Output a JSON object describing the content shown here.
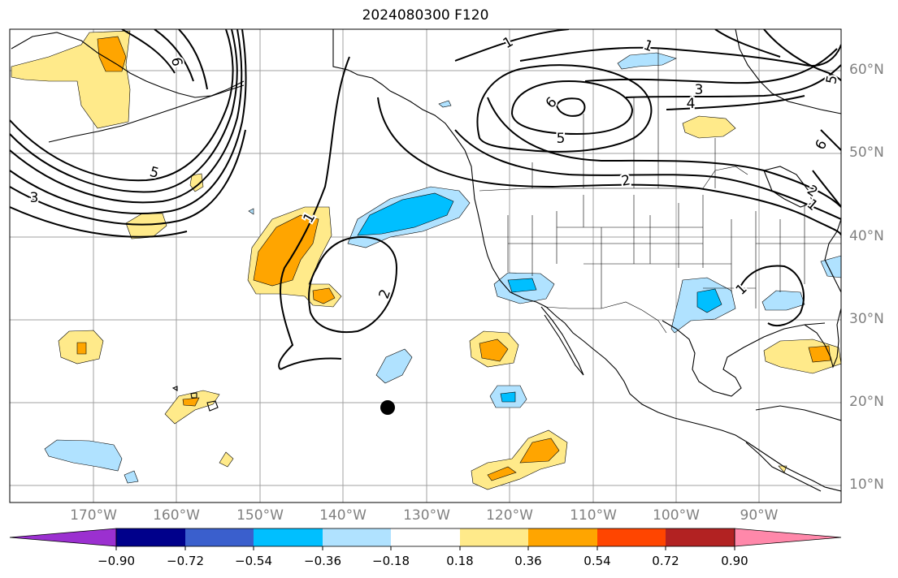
{
  "title": "2024080300 F120",
  "colors": {
    "land_outline": "#000000",
    "grid": "#a0a0a0",
    "contour": "#000000",
    "marker": "#000000"
  },
  "map": {
    "lat_labels": [
      "60°N",
      "50°N",
      "40°N",
      "30°N",
      "20°N",
      "10°N"
    ],
    "lon_labels": [
      "170°W",
      "160°W",
      "150°W",
      "140°W",
      "130°W",
      "120°W",
      "110°W",
      "100°W",
      "90°W"
    ],
    "contour_labels": [
      "1",
      "1",
      "1",
      "1",
      "1",
      "2",
      "2",
      "2",
      "3",
      "3",
      "4",
      "5",
      "5",
      "5",
      "6",
      "6",
      "6"
    ]
  },
  "colorbar": {
    "colors": [
      "#9b30d0",
      "#00008b",
      "#3a5fcd",
      "#00bfff",
      "#b0e2ff",
      "#ffffff",
      "#ffea8a",
      "#ffa500",
      "#ff4500",
      "#b22222",
      "#ff88aa"
    ],
    "ticks": [
      "−0.90",
      "−0.72",
      "−0.54",
      "−0.36",
      "−0.18",
      "0.18",
      "0.36",
      "0.54",
      "0.72",
      "0.90"
    ]
  }
}
